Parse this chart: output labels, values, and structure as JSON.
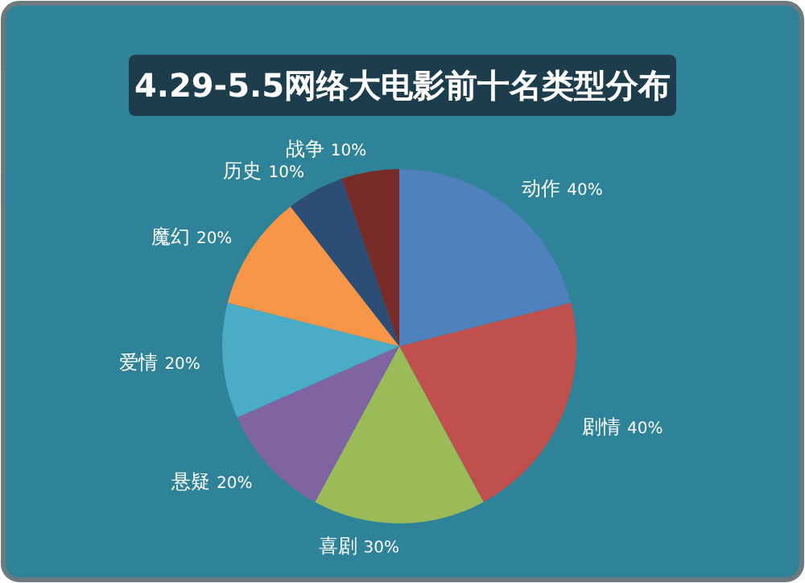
{
  "chart_data": {
    "type": "pie",
    "title": "4.29-5.5网络大电影前十名类型分布",
    "categories": [
      "动作",
      "剧情",
      "喜剧",
      "悬疑",
      "爱情",
      "魔幻",
      "历史",
      "战争"
    ],
    "values": [
      40,
      40,
      30,
      20,
      20,
      20,
      10,
      10
    ],
    "value_labels": [
      "40%",
      "40%",
      "30%",
      "20%",
      "20%",
      "20%",
      "10%",
      "10%"
    ],
    "colors": [
      "#4f81bd",
      "#c0504d",
      "#9bbb59",
      "#8064a2",
      "#4bacc6",
      "#f79646",
      "#2c4d75",
      "#772c2a"
    ]
  }
}
